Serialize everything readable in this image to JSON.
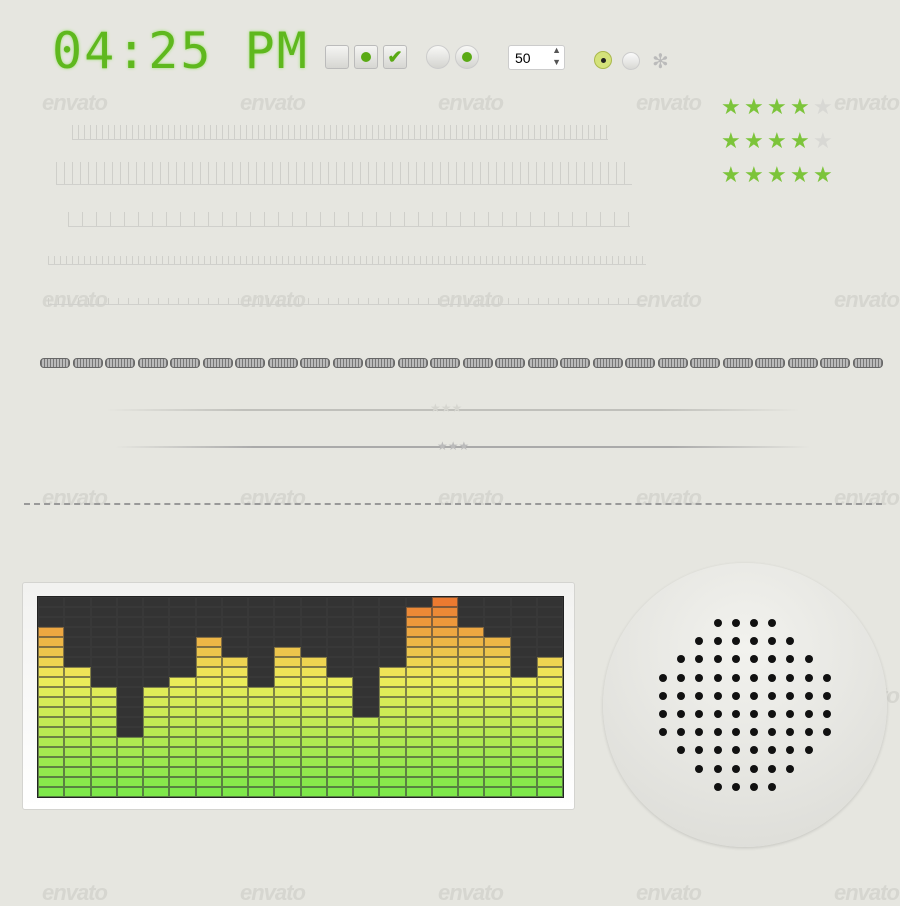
{
  "clock": {
    "time": "04:25",
    "ampm": "PM"
  },
  "controls": {
    "checkbox_states": [
      "unchecked",
      "dot",
      "checked"
    ],
    "radio_states": [
      "off",
      "on"
    ],
    "stepper_value": "50",
    "radio2_states": [
      "on",
      "off"
    ],
    "spinner_icon": "loading-spinner-icon"
  },
  "ratings": [
    {
      "value": 4,
      "max": 5
    },
    {
      "value": 4,
      "max": 5
    },
    {
      "value": 5,
      "max": 5
    }
  ],
  "watermark": "envato",
  "equalizer": {
    "levels": [
      17,
      13,
      11,
      6,
      11,
      12,
      16,
      14,
      11,
      15,
      14,
      12,
      8,
      13,
      19,
      20,
      17,
      16,
      12,
      14
    ],
    "rows": 20,
    "colors": {
      "low": "#7ee84a",
      "mid": "#eeec5a",
      "high": "#ec7a30",
      "empty": "#333333"
    }
  },
  "colors": {
    "accent": "#5fb81e",
    "background": "#e6e6e0"
  }
}
